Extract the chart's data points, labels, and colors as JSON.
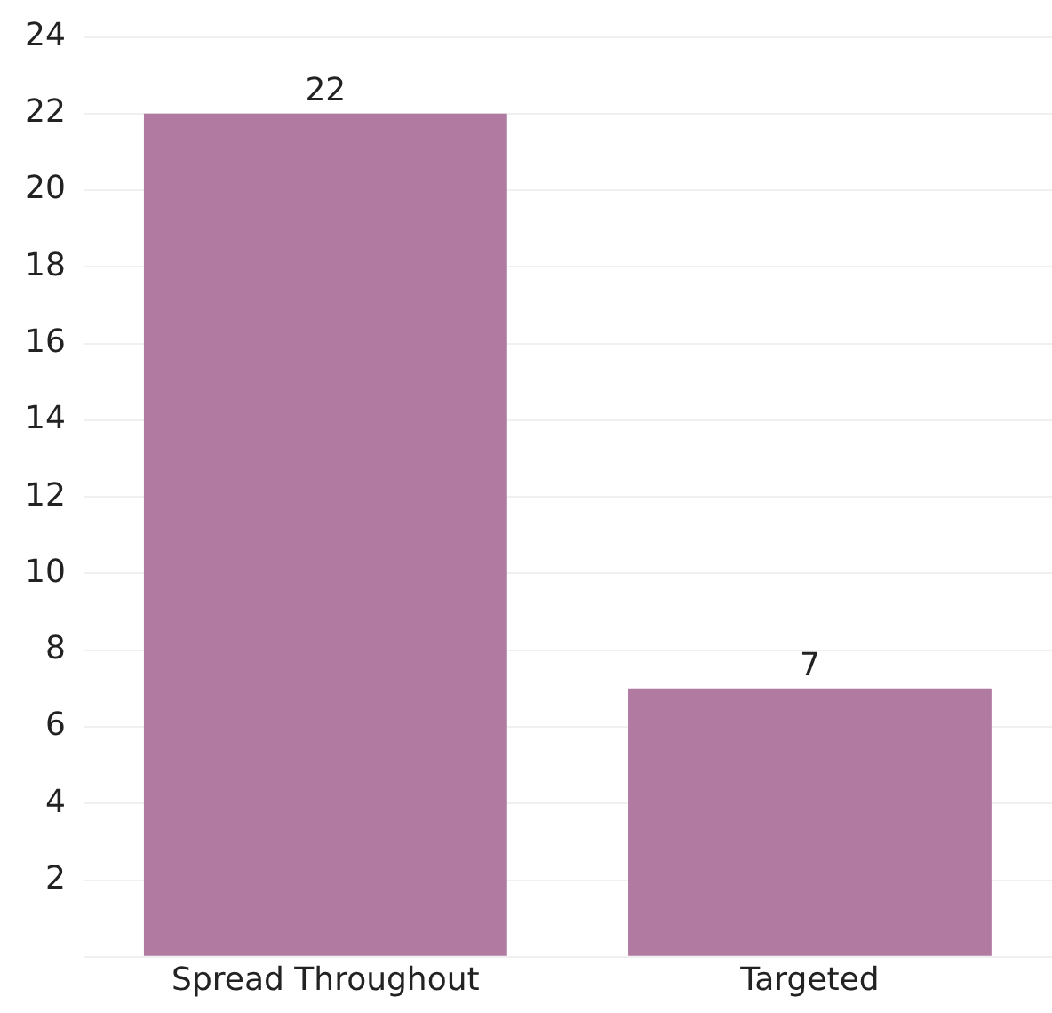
{
  "chart_data": {
    "type": "bar",
    "categories": [
      "Spread Throughout",
      "Targeted"
    ],
    "values": [
      22,
      7
    ],
    "color": "#b07aa1",
    "ylim": [
      0,
      24
    ],
    "yticks": [
      {
        "value": 0,
        "label": null
      },
      2,
      4,
      6,
      8,
      10,
      12,
      14,
      16,
      18,
      20,
      22,
      24
    ],
    "grid": "y",
    "data_labels": true
  }
}
